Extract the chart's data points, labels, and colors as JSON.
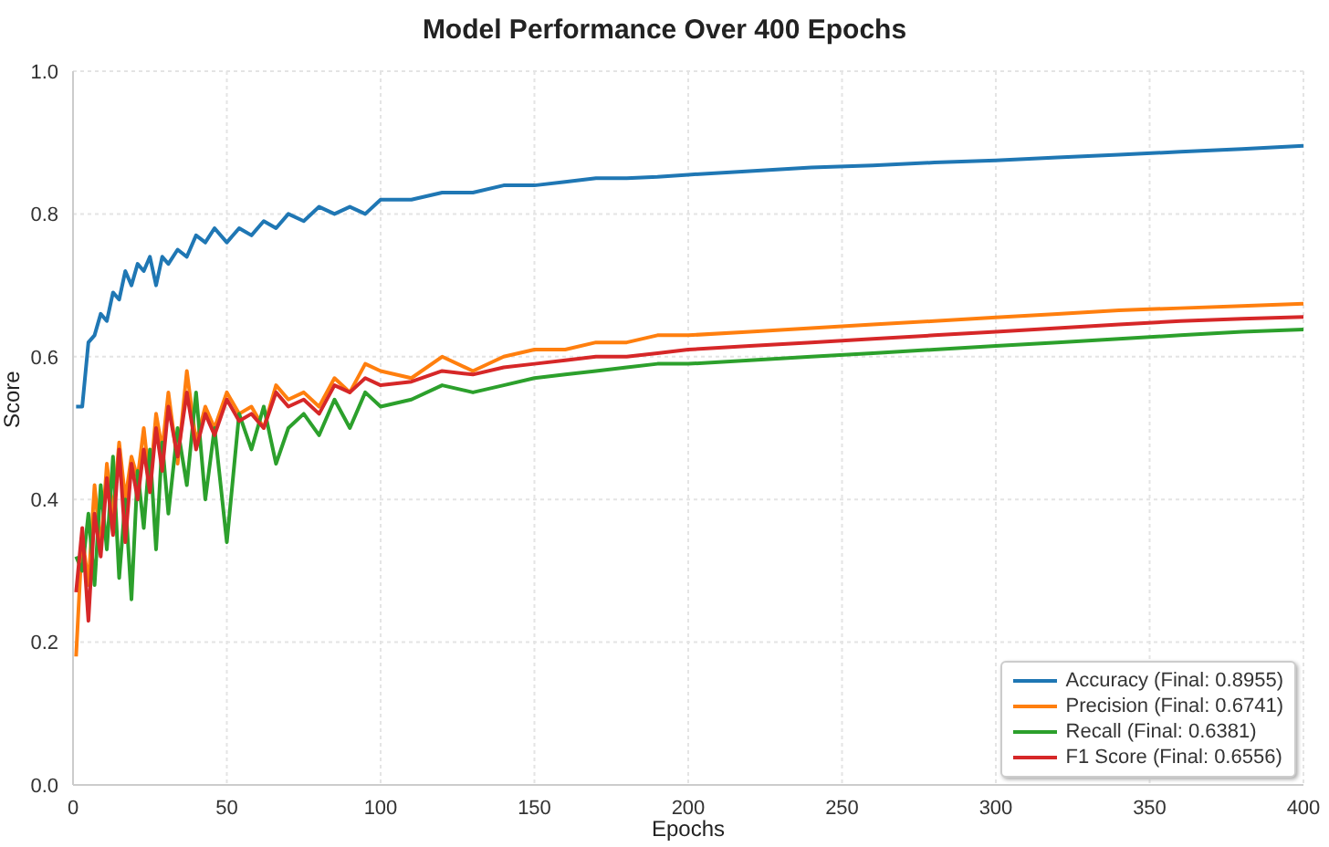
{
  "chart_data": {
    "type": "line",
    "title": "Model Performance Over 400 Epochs",
    "xlabel": "Epochs",
    "ylabel": "Score",
    "x": [
      1,
      3,
      5,
      7,
      9,
      11,
      13,
      15,
      17,
      19,
      21,
      23,
      25,
      27,
      29,
      31,
      34,
      37,
      40,
      43,
      46,
      50,
      54,
      58,
      62,
      66,
      70,
      75,
      80,
      85,
      90,
      95,
      100,
      110,
      120,
      130,
      140,
      150,
      160,
      170,
      180,
      190,
      200,
      220,
      240,
      260,
      280,
      300,
      320,
      340,
      360,
      380,
      400
    ],
    "series": [
      {
        "name": "Accuracy (Final: 0.8955)",
        "color": "#1f77b4",
        "values": [
          0.53,
          0.53,
          0.62,
          0.63,
          0.66,
          0.65,
          0.69,
          0.68,
          0.72,
          0.7,
          0.73,
          0.72,
          0.74,
          0.7,
          0.74,
          0.73,
          0.75,
          0.74,
          0.77,
          0.76,
          0.78,
          0.76,
          0.78,
          0.77,
          0.79,
          0.78,
          0.8,
          0.79,
          0.81,
          0.8,
          0.81,
          0.8,
          0.82,
          0.82,
          0.83,
          0.83,
          0.84,
          0.84,
          0.845,
          0.85,
          0.85,
          0.852,
          0.855,
          0.86,
          0.865,
          0.868,
          0.872,
          0.875,
          0.879,
          0.883,
          0.887,
          0.891,
          0.8955
        ]
      },
      {
        "name": "Precision (Final: 0.6741)",
        "color": "#ff7f0e",
        "values": [
          0.18,
          0.35,
          0.28,
          0.42,
          0.33,
          0.45,
          0.38,
          0.48,
          0.4,
          0.46,
          0.43,
          0.5,
          0.42,
          0.52,
          0.47,
          0.55,
          0.45,
          0.58,
          0.48,
          0.53,
          0.5,
          0.55,
          0.52,
          0.53,
          0.5,
          0.56,
          0.54,
          0.55,
          0.53,
          0.57,
          0.55,
          0.59,
          0.58,
          0.57,
          0.6,
          0.58,
          0.6,
          0.61,
          0.61,
          0.62,
          0.62,
          0.63,
          0.63,
          0.635,
          0.64,
          0.645,
          0.65,
          0.655,
          0.66,
          0.665,
          0.668,
          0.671,
          0.6741
        ]
      },
      {
        "name": "Recall (Final: 0.6381)",
        "color": "#2ca02c",
        "values": [
          0.32,
          0.3,
          0.38,
          0.28,
          0.42,
          0.33,
          0.46,
          0.29,
          0.4,
          0.26,
          0.44,
          0.36,
          0.47,
          0.33,
          0.48,
          0.38,
          0.5,
          0.42,
          0.55,
          0.4,
          0.5,
          0.34,
          0.52,
          0.47,
          0.53,
          0.45,
          0.5,
          0.52,
          0.49,
          0.54,
          0.5,
          0.55,
          0.53,
          0.54,
          0.56,
          0.55,
          0.56,
          0.57,
          0.575,
          0.58,
          0.585,
          0.59,
          0.59,
          0.595,
          0.6,
          0.605,
          0.61,
          0.615,
          0.62,
          0.625,
          0.63,
          0.635,
          0.6381
        ]
      },
      {
        "name": "F1 Score (Final: 0.6556)",
        "color": "#d62728",
        "values": [
          0.27,
          0.36,
          0.23,
          0.38,
          0.32,
          0.43,
          0.35,
          0.47,
          0.34,
          0.45,
          0.4,
          0.47,
          0.41,
          0.5,
          0.44,
          0.53,
          0.46,
          0.55,
          0.47,
          0.52,
          0.49,
          0.54,
          0.51,
          0.52,
          0.5,
          0.55,
          0.53,
          0.54,
          0.52,
          0.56,
          0.55,
          0.57,
          0.56,
          0.565,
          0.58,
          0.575,
          0.585,
          0.59,
          0.595,
          0.6,
          0.6,
          0.605,
          0.61,
          0.615,
          0.62,
          0.625,
          0.63,
          0.635,
          0.64,
          0.645,
          0.65,
          0.653,
          0.6556
        ]
      }
    ],
    "xlim": [
      0,
      400
    ],
    "xticks": [
      0,
      50,
      100,
      150,
      200,
      250,
      300,
      350,
      400
    ],
    "ylim": [
      0,
      1
    ],
    "yticks": [
      {
        "value": 0,
        "label": "0.0"
      },
      {
        "value": 0.2,
        "label": "0.2"
      },
      {
        "value": 0.4,
        "label": "0.4"
      },
      {
        "value": 0.6,
        "label": "0.6"
      },
      {
        "value": 0.8,
        "label": "0.8"
      },
      {
        "value": 1,
        "label": "1.0"
      }
    ],
    "grid": true,
    "legend": "bottom right",
    "marker": "none",
    "line_style": "solid"
  }
}
